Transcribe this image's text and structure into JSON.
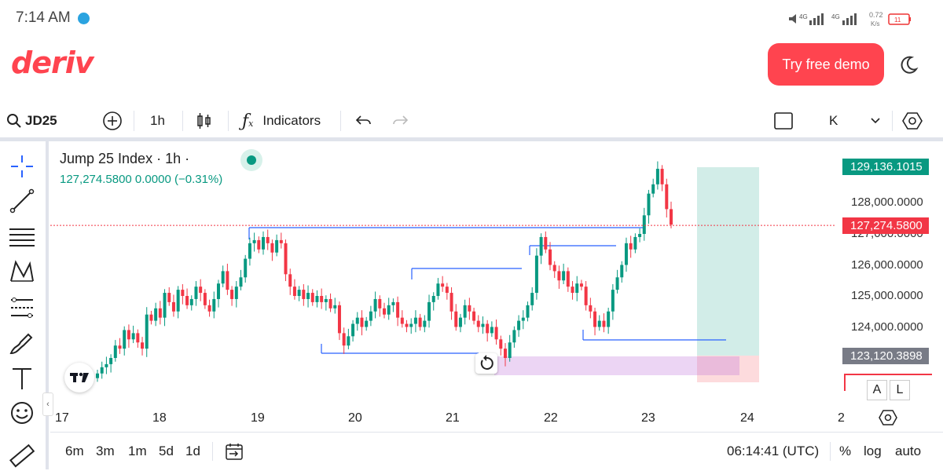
{
  "status_bar": {
    "time": "7:14 AM",
    "network": "4G",
    "network2": "4G",
    "speed_value": "0.72",
    "speed_unit": "K/s",
    "battery": "11"
  },
  "header": {
    "logo": "deriv",
    "demo_button": "Try free demo",
    "theme_icon": "moon-icon"
  },
  "toolbar": {
    "symbol": "JD25",
    "interval": "1h",
    "indicators_label": "Indicators",
    "candle_type_label": "K"
  },
  "legend": {
    "title": "Jump 25 Index · 1h ·",
    "values": "127,274.5800  0.0000 (−0.31%)"
  },
  "price_axis": {
    "labels": [
      "128,000.0000",
      "127,000.0000",
      "126,000.0000",
      "125,000.0000",
      "124,000.0000"
    ],
    "tag_high": "129,136.1015",
    "tag_current": "127,274.5800",
    "tag_low": "123,120.3898"
  },
  "time_axis": [
    "17",
    "18",
    "19",
    "20",
    "21",
    "22",
    "23",
    "24",
    "2"
  ],
  "axis_buttons": {
    "auto_label": "A",
    "log_label": "L"
  },
  "bottom_bar": {
    "ranges": [
      "6m",
      "3m",
      "1m",
      "5d",
      "1d"
    ],
    "clock": "06:14:41 (UTC)",
    "percent": "%",
    "log": "log",
    "auto": "auto"
  },
  "colors": {
    "up": "#089981",
    "down": "#f23645",
    "brand": "#ff444f",
    "line": "#2962ff"
  },
  "chart_data": {
    "type": "candlestick",
    "symbol": "Jump 25 Index",
    "interval": "1h",
    "x_ticks": [
      "17",
      "18",
      "19",
      "20",
      "21",
      "22",
      "23",
      "24",
      "2"
    ],
    "y_ticks": [
      124000,
      125000,
      126000,
      127000,
      128000
    ],
    "current_price": 127274.58,
    "high_marker": 129136.1015,
    "low_marker": 123120.3898,
    "closes": [
      122500,
      122700,
      122800,
      123000,
      123400,
      123300,
      123900,
      123600,
      123800,
      123500,
      123300,
      124400,
      124200,
      124600,
      124300,
      125100,
      124800,
      124500,
      125200,
      125000,
      124700,
      124900,
      125300,
      125100,
      124700,
      124500,
      124900,
      125400,
      125800,
      125200,
      124900,
      125300,
      125600,
      126200,
      126700,
      126800,
      126500,
      126900,
      126700,
      126400,
      126800,
      126700,
      125700,
      125300,
      125000,
      125200,
      124900,
      125100,
      124800,
      125000,
      124800,
      124900,
      124600,
      124700,
      123800,
      123400,
      123700,
      124100,
      124300,
      124000,
      124200,
      124500,
      124900,
      124600,
      124400,
      124700,
      124800,
      124300,
      124100,
      124000,
      124100,
      124300,
      124000,
      124200,
      124800,
      125000,
      125400,
      125300,
      125100,
      124500,
      124000,
      124300,
      124700,
      124500,
      124200,
      124000,
      124100,
      123800,
      124000,
      123600,
      123300,
      123000,
      123500,
      123900,
      124200,
      124300,
      124700,
      125100,
      126300,
      126900,
      126500,
      126000,
      125800,
      125500,
      125800,
      125300,
      125100,
      125400,
      125300,
      124700,
      124500,
      124000,
      124200,
      124000,
      124500,
      125200,
      125600,
      126000,
      126700,
      126500,
      126900,
      127000,
      127600,
      128300,
      128600,
      129100,
      128600,
      127800,
      127300
    ]
  }
}
